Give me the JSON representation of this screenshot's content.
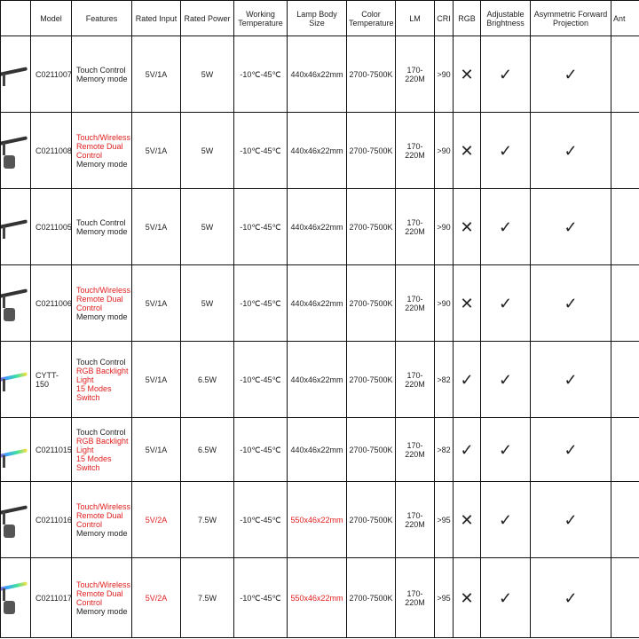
{
  "headers": [
    "",
    "Model",
    "Features",
    "Rated Input",
    "Rated Power",
    "Working Temperature",
    "Lamp Body Size",
    "Color Temperature",
    "LM",
    "CRI",
    "RGB",
    "Adjustable Brightness",
    "Asymmetric Forward Projection",
    "Ant"
  ],
  "rows": [
    {
      "model": "C0211007",
      "features": [
        {
          "t": "Touch Control",
          "red": false
        },
        {
          "t": "Memory mode",
          "red": false
        }
      ],
      "input": "5V/1A",
      "input_red": false,
      "power": "5W",
      "temp": "-10℃-45℃",
      "size": "440x46x22mm",
      "size_red": false,
      "cct": "2700-7500K",
      "lm": "170-220M",
      "cri": ">90",
      "rgb": "✕",
      "adj": "✓",
      "asym": "✓",
      "image": "black-lamp",
      "remote": false
    },
    {
      "model": "C0211008",
      "features": [
        {
          "t": "Touch/Wireless Remote Dual Control",
          "red": true
        },
        {
          "t": "Memory mode",
          "red": false
        }
      ],
      "input": "5V/1A",
      "input_red": false,
      "power": "5W",
      "temp": "-10℃-45℃",
      "size": "440x46x22mm",
      "size_red": false,
      "cct": "2700-7500K",
      "lm": "170-220M",
      "cri": ">90",
      "rgb": "✕",
      "adj": "✓",
      "asym": "✓",
      "image": "black-lamp",
      "remote": true
    },
    {
      "model": "C0211005",
      "features": [
        {
          "t": "Touch Control",
          "red": false
        },
        {
          "t": "Memory mode",
          "red": false
        }
      ],
      "input": "5V/1A",
      "input_red": false,
      "power": "5W",
      "temp": "-10℃-45℃",
      "size": "440x46x22mm",
      "size_red": false,
      "cct": "2700-7500K",
      "lm": "170-220M",
      "cri": ">90",
      "rgb": "✕",
      "adj": "✓",
      "asym": "✓",
      "image": "black-lamp",
      "remote": false
    },
    {
      "model": "C0211006",
      "features": [
        {
          "t": "Touch/Wireless Remote Dual Control",
          "red": true
        },
        {
          "t": "Memory mode",
          "red": false
        }
      ],
      "input": "5V/1A",
      "input_red": false,
      "power": "5W",
      "temp": "-10℃-45℃",
      "size": "440x46x22mm",
      "size_red": false,
      "cct": "2700-7500K",
      "lm": "170-220M",
      "cri": ">90",
      "rgb": "✕",
      "adj": "✓",
      "asym": "✓",
      "image": "black-lamp",
      "remote": true
    },
    {
      "model": "CYTT-150",
      "features": [
        {
          "t": "Touch Control",
          "red": false
        },
        {
          "t": "RGB Backlight Light",
          "red": true
        },
        {
          "t": "15 Modes Switch",
          "red": true
        }
      ],
      "input": "5V/1A",
      "input_red": false,
      "power": "6.5W",
      "temp": "-10℃-45℃",
      "size": "440x46x22mm",
      "size_red": false,
      "cct": "2700-7500K",
      "lm": "170-220M",
      "cri": ">82",
      "rgb": "✓",
      "adj": "✓",
      "asym": "✓",
      "image": "rgb-lamp",
      "remote": false
    },
    {
      "model": "C0211015",
      "features": [
        {
          "t": "Touch Control",
          "red": false
        },
        {
          "t": "RGB Backlight Light",
          "red": true
        },
        {
          "t": "15 Modes Switch",
          "red": true
        }
      ],
      "input": "5V/1A",
      "input_red": false,
      "power": "6.5W",
      "temp": "-10℃-45℃",
      "size": "440x46x22mm",
      "size_red": false,
      "cct": "2700-7500K",
      "lm": "170-220M",
      "cri": ">82",
      "rgb": "✓",
      "adj": "✓",
      "asym": "✓",
      "image": "rgb-lamp",
      "remote": false
    },
    {
      "model": "C0211016",
      "features": [
        {
          "t": "Touch/Wireless Remote Dual Control",
          "red": true
        },
        {
          "t": "Memory mode",
          "red": false
        }
      ],
      "input": "5V/2A",
      "input_red": true,
      "power": "7.5W",
      "temp": "-10℃-45℃",
      "size": "550x46x22mm",
      "size_red": true,
      "cct": "2700-7500K",
      "lm": "170-220M",
      "cri": ">95",
      "rgb": "✕",
      "adj": "✓",
      "asym": "✓",
      "image": "black-lamp",
      "remote": true
    },
    {
      "model": "C0211017",
      "features": [
        {
          "t": "Touch/Wireless Remote Dual Control",
          "red": true
        },
        {
          "t": "Memory mode",
          "red": false
        }
      ],
      "input": "5V/2A",
      "input_red": true,
      "power": "7.5W",
      "temp": "-10℃-45℃",
      "size": "550x46x22mm",
      "size_red": true,
      "cct": "2700-7500K",
      "lm": "170-220M",
      "cri": ">95",
      "rgb": "✕",
      "adj": "✓",
      "asym": "✓",
      "image": "rgb-lamp",
      "remote": true
    }
  ]
}
